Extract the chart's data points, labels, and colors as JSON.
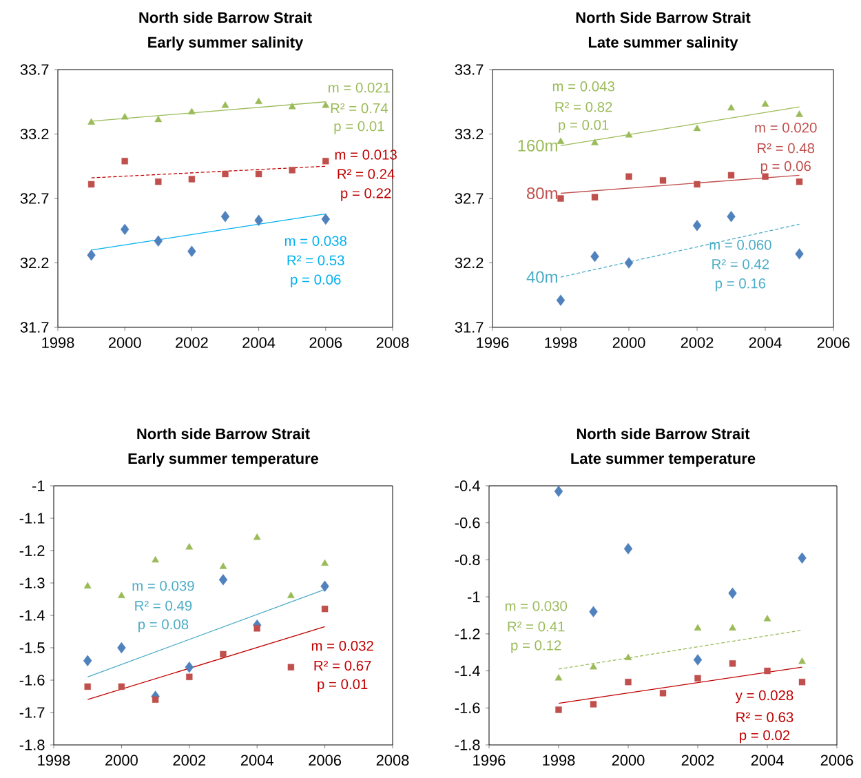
{
  "chart_data": [
    {
      "type": "scatter",
      "title": "North side Barrow Strait",
      "subtitle": "Early summer salinity",
      "xlim": [
        1998,
        2008
      ],
      "ylim": [
        31.7,
        33.7
      ],
      "xticks": [
        1998,
        2000,
        2002,
        2004,
        2006,
        2008
      ],
      "yticks": [
        31.7,
        32.2,
        32.7,
        33.2,
        33.7
      ],
      "series": [
        {
          "marker": "diamond",
          "color": "#4f81bd",
          "x": [
            1999,
            2000,
            2001,
            2002,
            2003,
            2004,
            2006
          ],
          "values": [
            32.26,
            32.46,
            32.37,
            32.29,
            32.56,
            32.53,
            32.54
          ]
        },
        {
          "marker": "square",
          "color": "#c0504d",
          "x": [
            1999,
            2000,
            2001,
            2002,
            2003,
            2004,
            2005,
            2006
          ],
          "values": [
            32.81,
            32.99,
            32.83,
            32.85,
            32.89,
            32.89,
            32.92,
            32.99
          ]
        },
        {
          "marker": "triangle",
          "color": "#9bbb59",
          "x": [
            1999,
            2000,
            2001,
            2002,
            2003,
            2004,
            2005,
            2006
          ],
          "values": [
            33.29,
            33.33,
            33.31,
            33.37,
            33.42,
            33.45,
            33.41,
            33.42
          ]
        },
        {
          "type": "line",
          "marker": "none",
          "line_style": "solid",
          "color": "#00b0f0",
          "x": [
            1999,
            2006
          ],
          "values": [
            32.3,
            32.58
          ]
        },
        {
          "type": "line",
          "marker": "none",
          "line_style": "dashed",
          "color": "#c00000",
          "x": [
            1999,
            2006
          ],
          "values": [
            32.86,
            32.95
          ]
        },
        {
          "type": "line",
          "marker": "none",
          "line_style": "solid",
          "color": "#9bbb59",
          "x": [
            1999,
            2006
          ],
          "values": [
            33.3,
            33.45
          ]
        }
      ],
      "annotations": [
        "m = 0.038",
        "R² = 0.53",
        "p = 0.06",
        "m = 0.013",
        "R² = 0.24",
        "p = 0.22",
        "m = 0.021",
        "R² = 0.74",
        "p = 0.01"
      ]
    },
    {
      "type": "scatter",
      "title": "North Side Barrow Strait",
      "subtitle": "Late summer salinity",
      "xlim": [
        1996,
        2006
      ],
      "ylim": [
        31.7,
        33.7
      ],
      "xticks": [
        1996,
        1998,
        2000,
        2002,
        2004,
        2006
      ],
      "yticks": [
        31.7,
        32.2,
        32.7,
        33.2,
        33.7
      ],
      "series": [
        {
          "marker": "diamond",
          "color": "#4f81bd",
          "x": [
            1998,
            1999,
            2000,
            2002,
            2003,
            2005
          ],
          "values": [
            31.91,
            32.25,
            32.2,
            32.49,
            32.56,
            32.27
          ]
        },
        {
          "marker": "square",
          "color": "#c0504d",
          "x": [
            1998,
            1999,
            2000,
            2001,
            2002,
            2003,
            2004,
            2005
          ],
          "values": [
            32.7,
            32.71,
            32.87,
            32.84,
            32.81,
            32.88,
            32.87,
            32.83
          ]
        },
        {
          "marker": "triangle",
          "color": "#9bbb59",
          "x": [
            1998,
            1999,
            2000,
            2002,
            2003,
            2004,
            2005
          ],
          "values": [
            33.14,
            33.13,
            33.19,
            33.24,
            33.4,
            33.43,
            33.35
          ]
        },
        {
          "type": "line",
          "name": "40m",
          "marker": "none",
          "line_style": "dashed",
          "color": "#4bacc6",
          "x": [
            1998,
            2005
          ],
          "values": [
            32.09,
            32.5
          ]
        },
        {
          "type": "line",
          "name": "80m",
          "marker": "none",
          "line_style": "solid",
          "color": "#c0504d",
          "x": [
            1998,
            2005
          ],
          "values": [
            32.74,
            32.88
          ]
        },
        {
          "type": "line",
          "name": "160m",
          "marker": "none",
          "line_style": "solid",
          "color": "#9bbb59",
          "x": [
            1998,
            2005
          ],
          "values": [
            33.11,
            33.41
          ]
        }
      ],
      "annotations": [
        "m = 0.060",
        "R² = 0.42",
        "p = 0.16",
        "m = 0.020",
        "R² = 0.48",
        "p = 0.06",
        "m = 0.043",
        "R² = 0.82",
        "p = 0.01"
      ]
    },
    {
      "type": "scatter",
      "title": "North side Barrow Strait",
      "subtitle": "Early summer temperature",
      "xlim": [
        1998,
        2008
      ],
      "ylim": [
        -1.8,
        -1
      ],
      "xticks": [
        1998,
        2000,
        2002,
        2004,
        2006,
        2008
      ],
      "yticks": [
        -1.8,
        -1.7,
        -1.6,
        -1.5,
        -1.4,
        -1.3,
        -1.2,
        -1.1,
        -1
      ],
      "series": [
        {
          "marker": "diamond",
          "color": "#4f81bd",
          "x": [
            1999,
            2000,
            2001,
            2002,
            2003,
            2004,
            2006
          ],
          "values": [
            -1.54,
            -1.5,
            -1.65,
            -1.56,
            -1.29,
            -1.43,
            -1.31
          ]
        },
        {
          "marker": "square",
          "color": "#c0504d",
          "x": [
            1999,
            2000,
            2001,
            2002,
            2003,
            2004,
            2005,
            2006
          ],
          "values": [
            -1.62,
            -1.62,
            -1.66,
            -1.59,
            -1.52,
            -1.44,
            -1.56,
            -1.38
          ]
        },
        {
          "marker": "triangle",
          "color": "#9bbb59",
          "x": [
            1999,
            2000,
            2001,
            2002,
            2003,
            2004,
            2005,
            2006
          ],
          "values": [
            -1.31,
            -1.34,
            -1.23,
            -1.19,
            -1.25,
            -1.16,
            -1.34,
            -1.24
          ]
        },
        {
          "type": "line",
          "marker": "none",
          "line_style": "solid",
          "color": "#4bacc6",
          "x": [
            1999,
            2006
          ],
          "values": [
            -1.59,
            -1.32
          ]
        },
        {
          "type": "line",
          "marker": "none",
          "line_style": "solid",
          "color": "#c00000",
          "x": [
            1999,
            2006
          ],
          "values": [
            -1.66,
            -1.435
          ]
        }
      ],
      "annotations": [
        "m = 0.039",
        "R² = 0.49",
        "p = 0.08",
        "m = 0.032",
        "R² = 0.67",
        "p = 0.01"
      ]
    },
    {
      "type": "scatter",
      "title": "North side Barrow Strait",
      "subtitle": "Late summer temperature",
      "xlim": [
        1996,
        2006
      ],
      "ylim": [
        -1.8,
        -0.4
      ],
      "xticks": [
        1996,
        1998,
        2000,
        2002,
        2004,
        2006
      ],
      "yticks": [
        -1.8,
        -1.6,
        -1.4,
        -1.2,
        -1,
        -0.8,
        -0.6,
        -0.4
      ],
      "series": [
        {
          "marker": "diamond",
          "color": "#4f81bd",
          "x": [
            1998,
            1999,
            2000,
            2002,
            2003,
            2005
          ],
          "values": [
            -0.43,
            -1.08,
            -0.74,
            -1.34,
            -0.98,
            -0.79
          ]
        },
        {
          "marker": "square",
          "color": "#c0504d",
          "x": [
            1998,
            1999,
            2000,
            2001,
            2002,
            2003,
            2004,
            2005
          ],
          "values": [
            -1.61,
            -1.58,
            -1.46,
            -1.52,
            -1.44,
            -1.36,
            -1.4,
            -1.46
          ]
        },
        {
          "marker": "triangle",
          "color": "#9bbb59",
          "x": [
            1998,
            1999,
            2000,
            2002,
            2003,
            2004,
            2005
          ],
          "values": [
            -1.44,
            -1.38,
            -1.33,
            -1.17,
            -1.17,
            -1.12,
            -1.35
          ]
        },
        {
          "type": "line",
          "marker": "none",
          "line_style": "dashed",
          "color": "#9bbb59",
          "x": [
            1998,
            2005
          ],
          "values": [
            -1.39,
            -1.18
          ]
        },
        {
          "type": "line",
          "marker": "none",
          "line_style": "solid",
          "color": "#c00000",
          "x": [
            1998,
            2005
          ],
          "values": [
            -1.575,
            -1.38
          ]
        }
      ],
      "annotations": [
        "m = 0.030",
        "R² = 0.41",
        "p = 0.12",
        "y = 0.028",
        "R² = 0.63",
        "p = 0.02"
      ]
    }
  ]
}
